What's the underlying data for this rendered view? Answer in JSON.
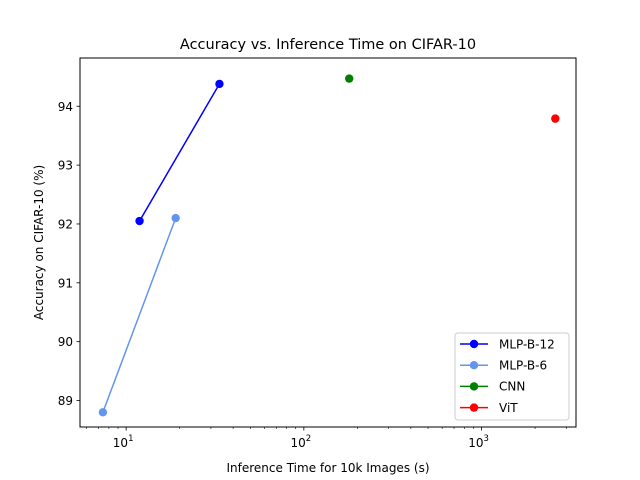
{
  "chart_data": {
    "type": "line",
    "title": "Accuracy vs. Inference Time on CIFAR-10",
    "xlabel": "Inference Time for 10k Images (s)",
    "ylabel": "Accuracy on CIFAR-10 (%)",
    "xscale": "log",
    "xlim": [
      5.5,
      3400
    ],
    "ylim": [
      88.55,
      94.82
    ],
    "x_ticks": [
      {
        "value": 10,
        "base": "10",
        "exp": "1"
      },
      {
        "value": 100,
        "base": "10",
        "exp": "2"
      },
      {
        "value": 1000,
        "base": "10",
        "exp": "3"
      }
    ],
    "y_ticks": [
      "89",
      "90",
      "91",
      "92",
      "93",
      "94"
    ],
    "legend_position": "lower right",
    "grid": false,
    "series": [
      {
        "name": "MLP-B-12",
        "color": "#0000ff",
        "points": [
          {
            "x": 11.9,
            "y": 92.05
          },
          {
            "x": 33.5,
            "y": 94.38
          }
        ]
      },
      {
        "name": "MLP-B-6",
        "color": "#6495ed",
        "points": [
          {
            "x": 7.4,
            "y": 88.8
          },
          {
            "x": 19,
            "y": 92.1
          }
        ]
      },
      {
        "name": "CNN",
        "color": "#008000",
        "points": [
          {
            "x": 180,
            "y": 94.47
          }
        ]
      },
      {
        "name": "ViT",
        "color": "#ff0000",
        "points": [
          {
            "x": 2600,
            "y": 93.79
          }
        ]
      }
    ]
  }
}
